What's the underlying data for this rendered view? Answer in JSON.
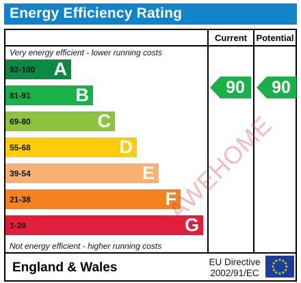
{
  "title": "Energy Efficiency Rating",
  "columns": {
    "current": "Current",
    "potential": "Potential"
  },
  "top_caption": "Very energy efficient - lower running costs",
  "bottom_caption": "Not energy efficient - higher running costs",
  "footer": {
    "region": "England & Wales",
    "directive_line1": "EU Directive",
    "directive_line2": "2002/91/EC"
  },
  "watermark": "AWEHOME",
  "colors": {
    "title_bar": "#1283c8",
    "A": "#0c8a43",
    "B": "#1ab04a",
    "C": "#8dc43f",
    "D": "#fecc0a",
    "E": "#f9b074",
    "F": "#f4831f",
    "G": "#e31d3c",
    "eu_flag": "#1a3e9a",
    "eu_stars": "#ffde00"
  },
  "chart_data": {
    "type": "bar",
    "title": "Energy Efficiency Rating",
    "categories": [
      "A",
      "B",
      "C",
      "D",
      "E",
      "F",
      "G"
    ],
    "ranges": [
      "92-100",
      "81-91",
      "69-80",
      "55-68",
      "39-54",
      "21-38",
      "1-20"
    ],
    "current": 90,
    "potential": 90,
    "current_band": "B",
    "potential_band": "B"
  }
}
